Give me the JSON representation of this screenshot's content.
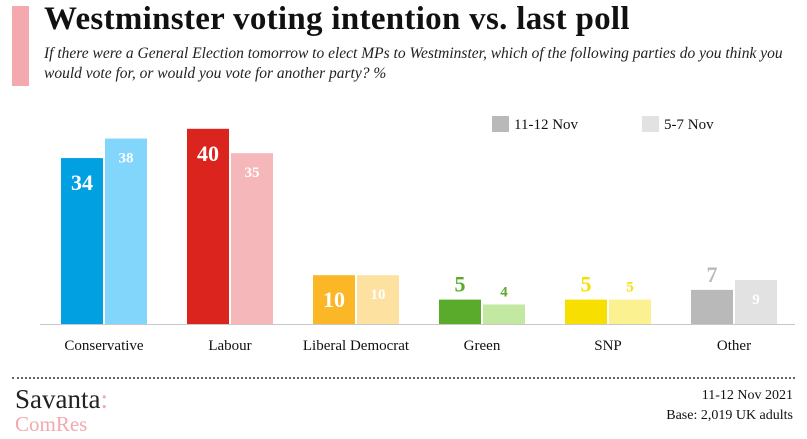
{
  "header": {
    "title": "Westminster voting intention vs. last poll",
    "subtitle": "If there were a General Election tomorrow to elect MPs to Westminster, which of the following parties do you think you would vote for, or would you vote for another party? %"
  },
  "chart_data": {
    "type": "bar",
    "categories": [
      "Conservative",
      "Labour",
      "Liberal Democrat",
      "Green",
      "SNP",
      "Other"
    ],
    "series": [
      {
        "name": "11-12 Nov",
        "values": [
          34,
          40,
          10,
          5,
          5,
          7
        ]
      },
      {
        "name": "5-7 Nov",
        "values": [
          38,
          35,
          10,
          4,
          5,
          9
        ]
      }
    ],
    "colors": {
      "current": [
        "#00a0e1",
        "#dc241f",
        "#fbb725",
        "#5aab2b",
        "#f7e001",
        "#b9b9b9"
      ],
      "previous": [
        "#82d6fc",
        "#f5b7b9",
        "#fde1a1",
        "#c2e8a2",
        "#fcf191",
        "#e2e2e2"
      ],
      "current_labels": [
        "#ffffff",
        "#ffffff",
        "#fbb725",
        "#5aab2b",
        "#f7e001",
        "#b9b9b9"
      ],
      "previous_labels": [
        "#ffffff",
        "#ffffff",
        "#fbb725",
        "#5aab2b",
        "#f7e001",
        "#b9b9b9"
      ],
      "legend_current": "#b9b9b9",
      "legend_previous": "#e2e2e2"
    },
    "legend": {
      "position": "top-right"
    },
    "ylim": [
      0,
      45
    ],
    "grid": false
  },
  "footer": {
    "logo_top": "Savanta",
    "logo_colon": ":",
    "logo_bottom": "ComRes",
    "date": "11-12 Nov 2021",
    "base": "Base: 2,019 UK adults"
  }
}
